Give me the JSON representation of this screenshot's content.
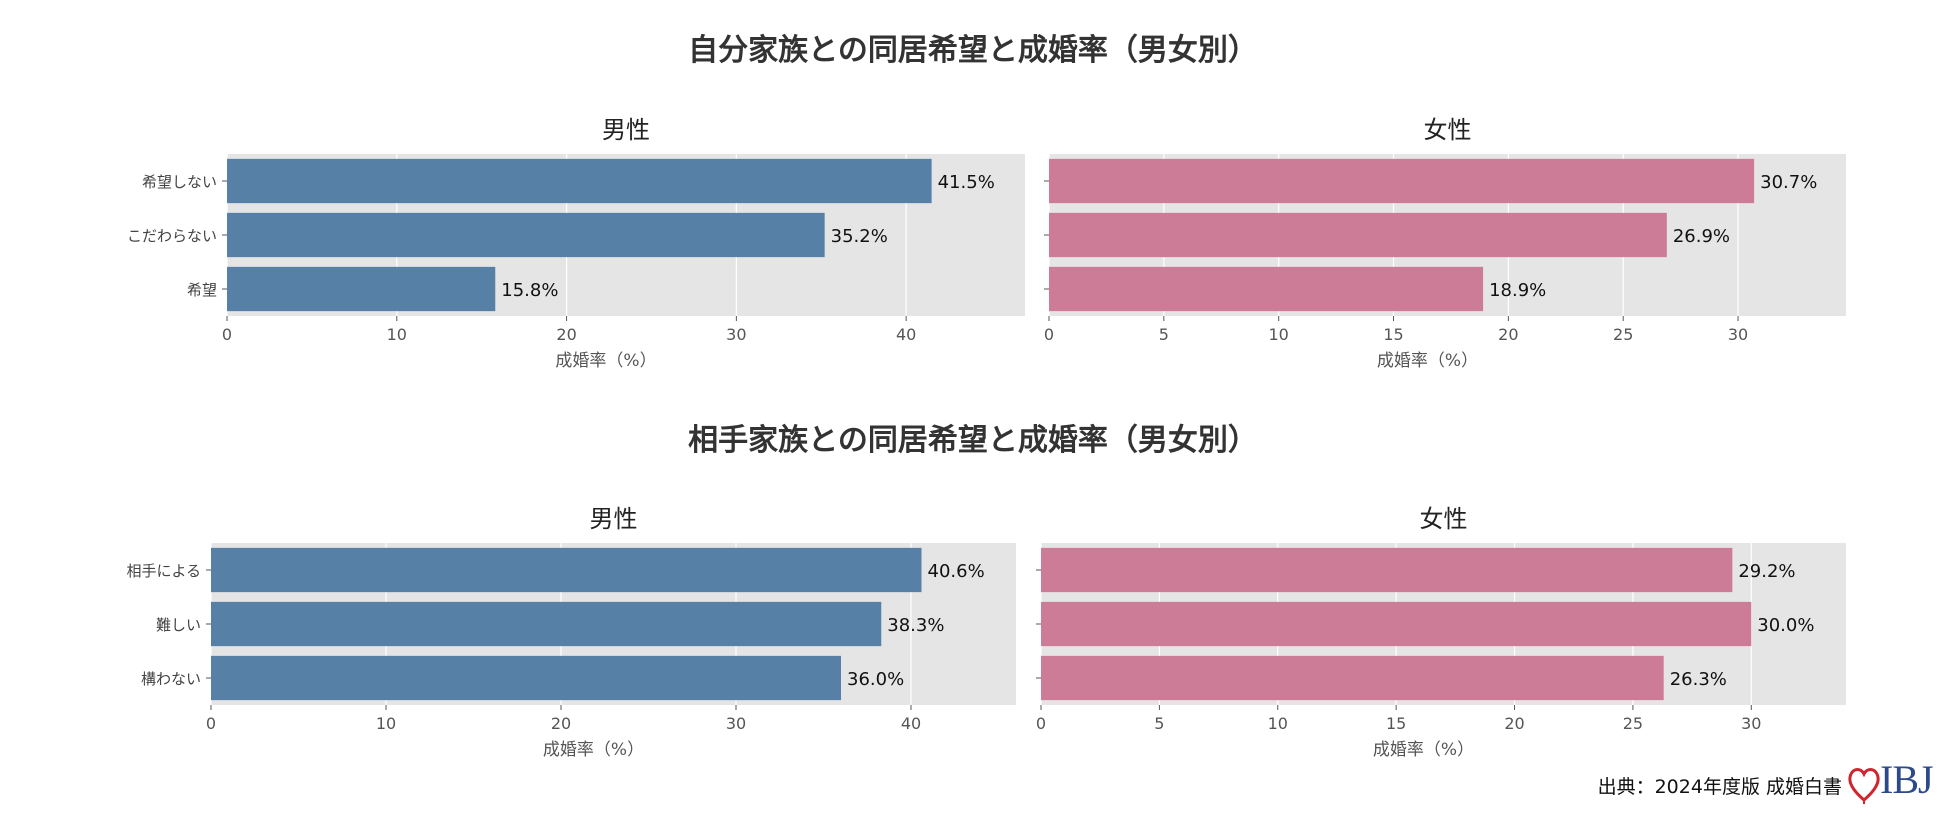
{
  "figure": {
    "source_text": "出典：2024年度版 成婚白書",
    "logo_text": "IBJ",
    "colors": {
      "male_bar": "#5780a6",
      "female_bar": "#cc7c96",
      "panel_bg": "#e5e5e5",
      "grid": "#ffffff",
      "logo_heart": "#d0242f",
      "logo_text": "#2c4a8a"
    }
  },
  "chart_data": [
    {
      "type": "bar",
      "orientation": "horizontal",
      "group_title": "自分家族との同居希望と成婚率（男女別）",
      "title": "男性",
      "xlabel": "成婚率（%）",
      "categories": [
        "希望しない",
        "こだわらない",
        "希望"
      ],
      "values": [
        41.5,
        35.2,
        15.8
      ],
      "value_labels": [
        "41.5%",
        "35.2%",
        "15.8%"
      ],
      "xlim": [
        0,
        47
      ],
      "xticks": [
        0,
        10,
        20,
        30,
        40
      ],
      "color": "#5780a6",
      "grid": true
    },
    {
      "type": "bar",
      "orientation": "horizontal",
      "title": "女性",
      "xlabel": "成婚率（%）",
      "categories": [
        "希望しない",
        "こだわらない",
        "希望"
      ],
      "values": [
        30.7,
        26.9,
        18.9
      ],
      "value_labels": [
        "30.7%",
        "26.9%",
        "18.9%"
      ],
      "xlim": [
        0,
        34.7
      ],
      "xticks": [
        0,
        5,
        10,
        15,
        20,
        25,
        30
      ],
      "color": "#cc7c96",
      "grid": true
    },
    {
      "type": "bar",
      "orientation": "horizontal",
      "group_title": "相手家族との同居希望と成婚率（男女別）",
      "title": "男性",
      "xlabel": "成婚率（%）",
      "categories": [
        "相手による",
        "難しい",
        "構わない"
      ],
      "values": [
        40.6,
        38.3,
        36.0
      ],
      "value_labels": [
        "40.6%",
        "38.3%",
        "36.0%"
      ],
      "xlim": [
        0,
        46
      ],
      "xticks": [
        0,
        10,
        20,
        30,
        40
      ],
      "color": "#5780a6",
      "grid": true
    },
    {
      "type": "bar",
      "orientation": "horizontal",
      "title": "女性",
      "xlabel": "成婚率（%）",
      "categories": [
        "相手による",
        "難しい",
        "構わない"
      ],
      "values": [
        29.2,
        30.0,
        26.3
      ],
      "value_labels": [
        "29.2%",
        "30.0%",
        "26.3%"
      ],
      "xlim": [
        0,
        34
      ],
      "xticks": [
        0,
        5,
        10,
        15,
        20,
        25,
        30
      ],
      "color": "#cc7c96",
      "grid": true
    }
  ]
}
